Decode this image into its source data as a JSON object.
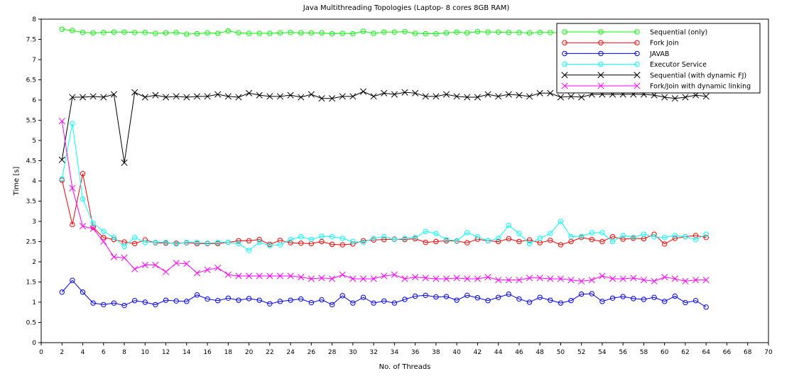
{
  "chart_data": {
    "type": "line",
    "title": "Java Multithreading Topologies (Laptop- 8 cores 8GB RAM)",
    "xlabel": "No. of Threads",
    "ylabel": "Time [s]",
    "xlim": [
      0,
      70
    ],
    "ylim": [
      0,
      8
    ],
    "xticks": [
      0,
      2,
      4,
      6,
      8,
      10,
      12,
      14,
      16,
      18,
      20,
      22,
      24,
      26,
      28,
      30,
      32,
      34,
      36,
      38,
      40,
      42,
      44,
      46,
      48,
      50,
      52,
      54,
      56,
      58,
      60,
      62,
      64,
      66,
      68,
      70
    ],
    "yticks": [
      0,
      0.5,
      1,
      1.5,
      2,
      2.5,
      3,
      3.5,
      4,
      4.5,
      5,
      5.5,
      6,
      6.5,
      7,
      7.5,
      8
    ],
    "grid": false,
    "legend_position": "top-right",
    "x": [
      2,
      3,
      4,
      5,
      6,
      7,
      8,
      9,
      10,
      11,
      12,
      13,
      14,
      15,
      16,
      17,
      18,
      19,
      20,
      21,
      22,
      23,
      24,
      25,
      26,
      27,
      28,
      29,
      30,
      31,
      32,
      33,
      34,
      35,
      36,
      37,
      38,
      39,
      40,
      41,
      42,
      43,
      44,
      45,
      46,
      47,
      48,
      49,
      50,
      51,
      52,
      53,
      54,
      55,
      56,
      57,
      58,
      59,
      60,
      61,
      62,
      63,
      64
    ],
    "series": [
      {
        "name": "Sequential (only)",
        "color": "#00ff00",
        "marker": "circle",
        "values": [
          7.75,
          7.72,
          7.67,
          7.66,
          7.67,
          7.68,
          7.68,
          7.67,
          7.67,
          7.65,
          7.66,
          7.67,
          7.63,
          7.64,
          7.66,
          7.65,
          7.71,
          7.66,
          7.65,
          7.65,
          7.65,
          7.66,
          7.67,
          7.66,
          7.66,
          7.66,
          7.64,
          7.65,
          7.64,
          7.7,
          7.65,
          7.68,
          7.68,
          7.69,
          7.65,
          7.64,
          7.64,
          7.66,
          7.68,
          7.66,
          7.69,
          7.68,
          7.68,
          7.67,
          7.67,
          7.66,
          7.67,
          7.67,
          7.66,
          7.66,
          7.66,
          7.66,
          7.66,
          7.66,
          7.66,
          7.66,
          7.66,
          7.66,
          7.66,
          7.66,
          7.66,
          7.66,
          7.66
        ]
      },
      {
        "name": "Fork Join",
        "color": "#ff0000",
        "marker": "circle",
        "values": [
          4.02,
          2.92,
          4.18,
          2.85,
          2.6,
          2.55,
          2.49,
          2.45,
          2.54,
          2.47,
          2.46,
          2.46,
          2.47,
          2.45,
          2.45,
          2.45,
          2.48,
          2.52,
          2.52,
          2.55,
          2.43,
          2.53,
          2.47,
          2.46,
          2.45,
          2.5,
          2.43,
          2.42,
          2.44,
          2.52,
          2.54,
          2.55,
          2.56,
          2.55,
          2.57,
          2.48,
          2.5,
          2.52,
          2.51,
          2.47,
          2.56,
          2.52,
          2.5,
          2.57,
          2.5,
          2.54,
          2.47,
          2.53,
          2.42,
          2.5,
          2.6,
          2.55,
          2.5,
          2.62,
          2.56,
          2.58,
          2.57,
          2.68,
          2.44,
          2.58,
          2.62,
          2.65,
          2.6
        ]
      },
      {
        "name": "JAVAB",
        "color": "#0000ff",
        "marker": "circle",
        "values": [
          1.25,
          1.54,
          1.25,
          0.98,
          0.94,
          0.98,
          0.92,
          1.04,
          1.0,
          0.94,
          1.05,
          1.03,
          1.02,
          1.18,
          1.08,
          1.04,
          1.1,
          1.05,
          1.09,
          1.05,
          0.96,
          1.02,
          1.05,
          1.08,
          0.99,
          1.06,
          0.94,
          1.16,
          0.98,
          1.12,
          0.98,
          1.03,
          0.98,
          1.07,
          1.15,
          1.17,
          1.13,
          1.14,
          1.05,
          1.17,
          1.11,
          1.04,
          1.12,
          1.2,
          1.08,
          1.0,
          1.12,
          1.05,
          0.98,
          1.04,
          1.2,
          1.21,
          1.02,
          1.1,
          1.14,
          1.09,
          1.07,
          1.12,
          1.02,
          1.15,
          0.99,
          1.04,
          0.88
        ]
      },
      {
        "name": "Executor Service",
        "color": "#00ffff",
        "marker": "circle",
        "values": [
          4.05,
          5.42,
          3.55,
          2.95,
          2.75,
          2.6,
          2.38,
          2.6,
          2.48,
          2.48,
          2.48,
          2.44,
          2.48,
          2.48,
          2.46,
          2.48,
          2.48,
          2.45,
          2.28,
          2.48,
          2.4,
          2.42,
          2.55,
          2.62,
          2.55,
          2.63,
          2.62,
          2.58,
          2.5,
          2.48,
          2.58,
          2.62,
          2.55,
          2.58,
          2.6,
          2.75,
          2.7,
          2.55,
          2.52,
          2.72,
          2.62,
          2.52,
          2.58,
          2.9,
          2.7,
          2.45,
          2.58,
          2.7,
          3.0,
          2.62,
          2.63,
          2.72,
          2.72,
          2.5,
          2.65,
          2.6,
          2.68,
          2.62,
          2.6,
          2.65,
          2.62,
          2.55,
          2.68
        ]
      },
      {
        "name": "Sequential (with dynamic FJ)",
        "color": "#000000",
        "marker": "x",
        "values": [
          4.52,
          6.07,
          6.07,
          6.09,
          6.07,
          6.14,
          4.45,
          6.19,
          6.07,
          6.12,
          6.07,
          6.09,
          6.07,
          6.09,
          6.09,
          6.14,
          6.09,
          6.07,
          6.17,
          6.12,
          6.09,
          6.09,
          6.12,
          6.07,
          6.14,
          6.04,
          6.04,
          6.09,
          6.09,
          6.21,
          6.09,
          6.17,
          6.14,
          6.19,
          6.17,
          6.09,
          6.09,
          6.14,
          6.09,
          6.07,
          6.07,
          6.14,
          6.09,
          6.14,
          6.12,
          6.09,
          6.17,
          6.17,
          6.07,
          6.09,
          6.07,
          6.14,
          6.14,
          6.14,
          6.14,
          6.14,
          6.14,
          6.12,
          6.07,
          6.04,
          6.07,
          6.12,
          6.09
        ]
      },
      {
        "name": "Fork/Join with dynamic linking",
        "color": "#ff00ff",
        "marker": "x",
        "values": [
          5.48,
          3.82,
          2.88,
          2.82,
          2.5,
          2.12,
          2.1,
          1.82,
          1.92,
          1.92,
          1.75,
          1.97,
          1.95,
          1.72,
          1.8,
          1.85,
          1.68,
          1.65,
          1.65,
          1.65,
          1.65,
          1.65,
          1.65,
          1.62,
          1.58,
          1.6,
          1.58,
          1.68,
          1.58,
          1.58,
          1.58,
          1.65,
          1.68,
          1.58,
          1.62,
          1.6,
          1.58,
          1.58,
          1.6,
          1.58,
          1.58,
          1.62,
          1.55,
          1.55,
          1.55,
          1.6,
          1.6,
          1.58,
          1.58,
          1.55,
          1.52,
          1.55,
          1.65,
          1.58,
          1.58,
          1.6,
          1.55,
          1.52,
          1.62,
          1.58,
          1.52,
          1.55,
          1.55
        ]
      }
    ]
  }
}
